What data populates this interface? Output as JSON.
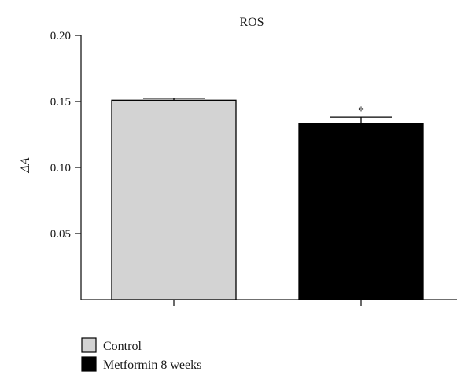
{
  "chart_data": {
    "type": "bar",
    "title": "ROS",
    "xlabel": "",
    "ylabel": "ΔA",
    "ylim": [
      0.0,
      0.2
    ],
    "yticks": [
      "0.05",
      "0.10",
      "0.15",
      "0.20"
    ],
    "categories": [
      "Control",
      "Metformin 8 weeks"
    ],
    "values": [
      0.151,
      0.133
    ],
    "errors": [
      0.0015,
      0.005
    ],
    "annotations": [
      "",
      "*"
    ],
    "legend": {
      "position": "bottom-left",
      "entries": [
        "Control",
        "Metformin 8 weeks"
      ]
    },
    "grid": false
  },
  "colors": {
    "Control": "#d3d3d3",
    "Metformin 8 weeks": "#000000",
    "axis": "#1a1a1a"
  }
}
